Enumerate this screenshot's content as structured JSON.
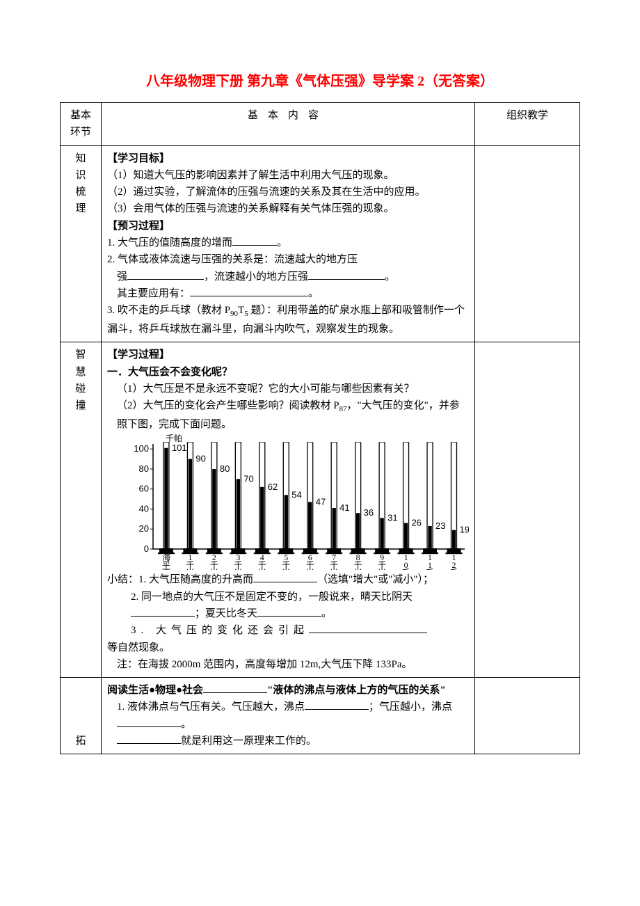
{
  "title": "八年级物理下册 第九章《气体压强》导学案 2（无答案）",
  "header": {
    "c1": "基本环节",
    "c2": "基本内容",
    "c3": "组织教学"
  },
  "row1": {
    "label": "知识梳理",
    "h1": "【学习目标】",
    "p1": "（1）知道大气压的影响因素并了解生活中利用大气压的现象。",
    "p2": "（2）通过实验，了解流体的压强与流速的关系及其在生活中的应用。",
    "p3": "（3）会用气体的压强与流速的关系解释有关气体压强的现象。",
    "h2": "【预习过程】",
    "q1a": "1. 大气压的值随高度的增而",
    "q1b": "。",
    "q2a": "2. 气体或液体流速与压强的关系是：流速越大的地方压",
    "q2b": "强",
    "q2c": "，流速越小的地方压强",
    "q2d": "。",
    "q2e": "其主要应用有：",
    "q2f": "。",
    "q3": "3. 吹不走的乒乓球（教材 P",
    "q3s1": "90",
    "q3m": "T",
    "q3s2": "5",
    "q3t": " 题）：利用带盖的矿泉水瓶上部和吸管制作一个漏斗，将乒乓球放在漏斗里，向漏斗内吹气，观察发生的现象。"
  },
  "row2": {
    "label": "智慧碰撞",
    "h1": "【学习过程】",
    "h2": "一．大气压会不会变化呢？",
    "p1": "（1）大气压是不是永远不变呢？它的大小可能与哪些因素有关？",
    "p2a": "（2）大气压的变化会产生哪些影响？阅读教材 P",
    "p2s": "87",
    "p2b": "，\"大气压的变化\"，并参照下图，完成下面问题。",
    "chart": {
      "type": "bar",
      "unit_label": "千帕",
      "y_ticks": [
        0,
        20,
        40,
        60,
        80,
        100
      ],
      "ylim": [
        0,
        105
      ],
      "categories": [
        "海平面",
        "1 千米",
        "2 千米",
        "3 千米",
        "4 千米",
        "5 千米",
        "6 千米",
        "7 千米",
        "8 千米",
        "9 千米",
        "10 千米",
        "11 千米",
        "12 千米"
      ],
      "values": [
        101,
        90,
        80,
        70,
        62,
        54,
        47,
        41,
        36,
        31,
        26,
        23,
        19
      ],
      "bar_fill": "#000000",
      "tube_stroke": "#000000",
      "tube_fill": "#ffffff",
      "axis_color": "#000000",
      "background": "#ffffff"
    },
    "s1a": "小结：1. 大气压随高度的升高而",
    "s1b": "（选填\"增大\"或\"减小\"）；",
    "s2a": "2. 同一地点的大气压不是固定不变的，一般说来，晴天比阴天",
    "s2b": "；夏天比冬天",
    "s2c": "。",
    "s3a": "3. 大气压的变化还会引起",
    "s3b": "等自然现象。",
    "note": "注：在海拔 2000m 范围内，高度每增加 12m,大气压下降 133Pa。"
  },
  "row3": {
    "label": "拓",
    "p1a": "阅读生活●物理●社会",
    "p1b": "\"液体的沸点与液体上方的气压的关系\"",
    "p2a": "1. 液体沸点与气压有关。气压越大，沸点",
    "p2b": "；气压越小，沸点",
    "p2c": "。",
    "p3a": "",
    "p3b": "就是利用这一原理来工作的。"
  }
}
